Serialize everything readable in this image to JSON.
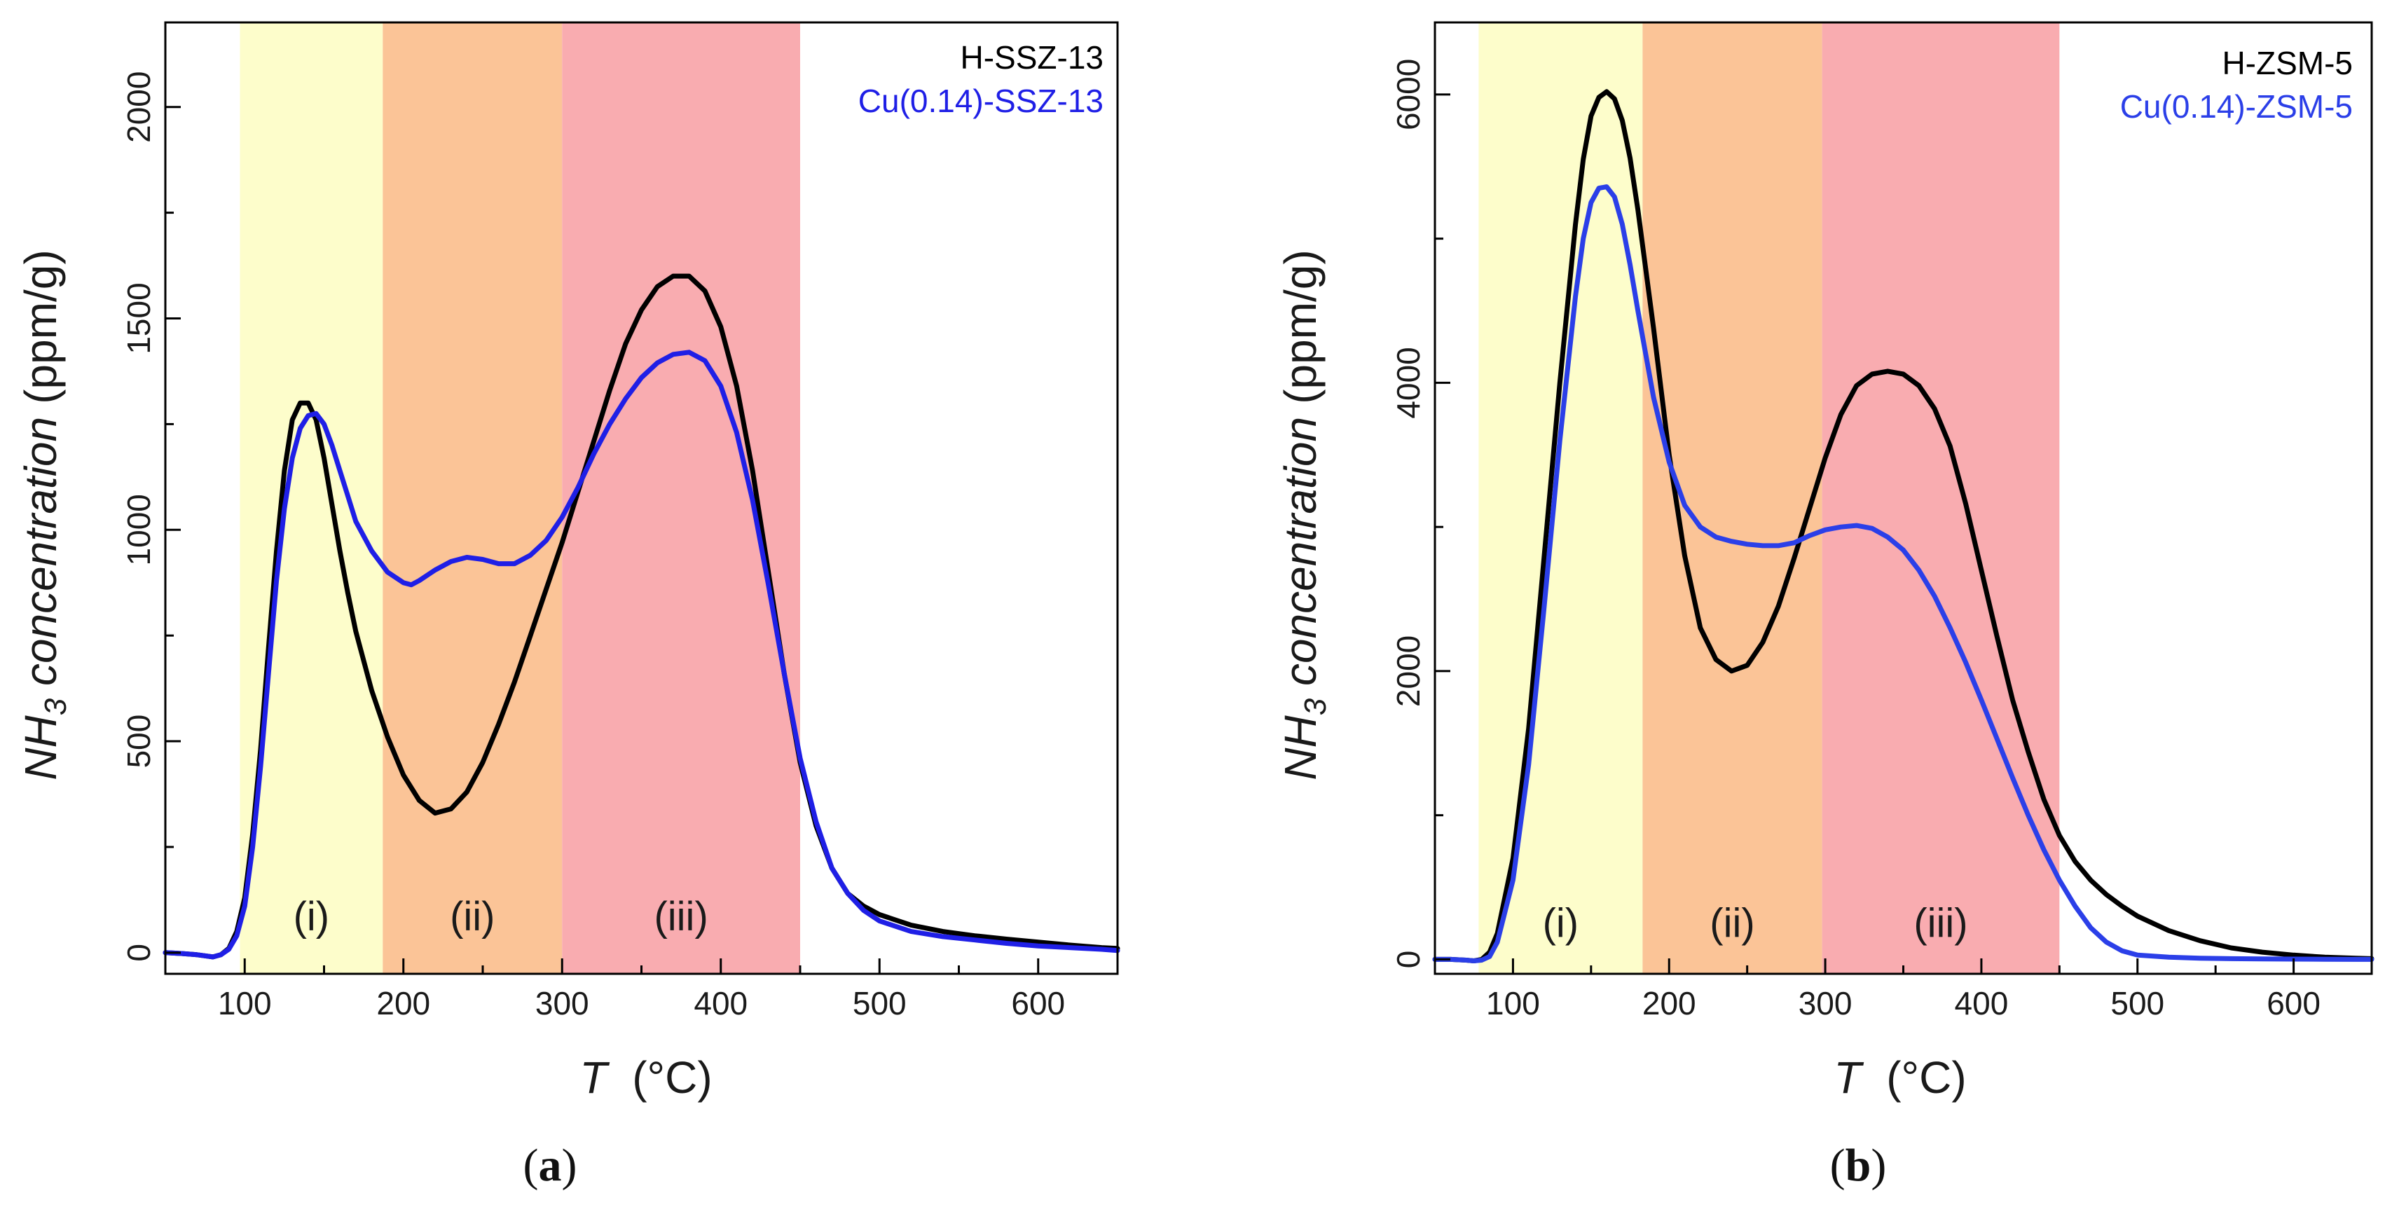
{
  "chart_data": [
    {
      "type": "line",
      "panel_label": "a",
      "xlabel": "T",
      "xlabel_unit": "(°C)",
      "ylabel_prefix": "NH",
      "ylabel_sub": "3",
      "ylabel_suffix": " concentration",
      "ylabel_unit": "(ppm/g)",
      "xlim": [
        50,
        650
      ],
      "ylim": [
        -50,
        2200
      ],
      "xticks": [
        100,
        200,
        300,
        400,
        500,
        600
      ],
      "yticks": [
        0,
        500,
        1000,
        1500,
        2000
      ],
      "regions": [
        {
          "label": "(i)",
          "x0": 97,
          "x1": 187,
          "color": "#fdfdcb"
        },
        {
          "label": "(ii)",
          "x0": 187,
          "x1": 300,
          "color": "#fbc497"
        },
        {
          "label": "(iii)",
          "x0": 300,
          "x1": 450,
          "color": "#f9acb0"
        }
      ],
      "legend": {
        "position": "top-right"
      },
      "series": [
        {
          "name": "H-SSZ-13",
          "color": "#000000",
          "x": [
            50,
            60,
            70,
            80,
            85,
            90,
            95,
            100,
            105,
            110,
            115,
            120,
            125,
            130,
            135,
            140,
            145,
            150,
            155,
            160,
            165,
            170,
            180,
            190,
            200,
            210,
            220,
            230,
            240,
            250,
            260,
            270,
            280,
            290,
            300,
            310,
            320,
            330,
            340,
            350,
            360,
            370,
            380,
            390,
            400,
            410,
            420,
            430,
            440,
            450,
            460,
            470,
            480,
            490,
            500,
            520,
            540,
            560,
            580,
            600,
            620,
            640,
            650
          ],
          "y": [
            0,
            -2,
            -5,
            -10,
            -5,
            10,
            50,
            130,
            280,
            480,
            720,
            950,
            1140,
            1260,
            1300,
            1300,
            1260,
            1170,
            1060,
            950,
            850,
            760,
            620,
            510,
            420,
            360,
            330,
            340,
            380,
            450,
            540,
            640,
            750,
            860,
            970,
            1090,
            1210,
            1330,
            1440,
            1520,
            1575,
            1600,
            1600,
            1565,
            1480,
            1340,
            1140,
            900,
            660,
            450,
            300,
            200,
            140,
            110,
            90,
            65,
            50,
            40,
            32,
            25,
            18,
            12,
            10
          ]
        },
        {
          "name": "Cu(0.14)-SSZ-13",
          "color": "#1f1fe6",
          "x": [
            50,
            60,
            70,
            80,
            85,
            90,
            95,
            100,
            105,
            110,
            115,
            120,
            125,
            130,
            135,
            140,
            145,
            150,
            155,
            160,
            165,
            170,
            180,
            190,
            200,
            205,
            210,
            220,
            230,
            240,
            250,
            260,
            270,
            280,
            290,
            300,
            310,
            320,
            330,
            340,
            350,
            360,
            370,
            380,
            390,
            400,
            410,
            420,
            430,
            440,
            450,
            460,
            470,
            480,
            490,
            500,
            520,
            540,
            560,
            580,
            600,
            620,
            640,
            650
          ],
          "y": [
            0,
            -2,
            -5,
            -10,
            -5,
            8,
            40,
            110,
            250,
            440,
            660,
            880,
            1050,
            1170,
            1240,
            1270,
            1275,
            1250,
            1200,
            1140,
            1080,
            1020,
            950,
            900,
            875,
            870,
            880,
            905,
            925,
            935,
            930,
            920,
            920,
            940,
            975,
            1030,
            1100,
            1180,
            1250,
            1310,
            1360,
            1395,
            1415,
            1420,
            1400,
            1340,
            1230,
            1070,
            870,
            660,
            460,
            310,
            200,
            140,
            100,
            75,
            50,
            38,
            30,
            22,
            16,
            12,
            8,
            5
          ]
        }
      ]
    },
    {
      "type": "line",
      "panel_label": "b",
      "xlabel": "T",
      "xlabel_unit": "(°C)",
      "ylabel_prefix": "NH",
      "ylabel_sub": "3",
      "ylabel_suffix": " concentration",
      "ylabel_unit": "(ppm/g)",
      "xlim": [
        50,
        650
      ],
      "ylim": [
        -100,
        6500
      ],
      "xticks": [
        100,
        200,
        300,
        400,
        500,
        600
      ],
      "yticks": [
        0,
        2000,
        4000,
        6000
      ],
      "regions": [
        {
          "label": "(i)",
          "x0": 78,
          "x1": 183,
          "color": "#fdfdcb"
        },
        {
          "label": "(ii)",
          "x0": 183,
          "x1": 298,
          "color": "#fbc497"
        },
        {
          "label": "(iii)",
          "x0": 298,
          "x1": 450,
          "color": "#f9acb0"
        }
      ],
      "legend": {
        "position": "top-right"
      },
      "series": [
        {
          "name": "H-ZSM-5",
          "color": "#000000",
          "x": [
            50,
            60,
            70,
            75,
            80,
            85,
            90,
            100,
            110,
            120,
            130,
            140,
            145,
            150,
            155,
            160,
            165,
            170,
            175,
            180,
            190,
            200,
            210,
            220,
            230,
            240,
            250,
            260,
            270,
            280,
            290,
            300,
            310,
            320,
            330,
            340,
            350,
            360,
            370,
            380,
            390,
            400,
            410,
            420,
            430,
            440,
            450,
            460,
            470,
            480,
            490,
            500,
            520,
            540,
            560,
            580,
            600,
            620,
            640,
            650
          ],
          "y": [
            0,
            0,
            -5,
            -10,
            0,
            50,
            180,
            700,
            1600,
            2800,
            4000,
            5100,
            5550,
            5850,
            5980,
            6020,
            5970,
            5820,
            5560,
            5200,
            4380,
            3500,
            2800,
            2300,
            2080,
            2000,
            2040,
            2200,
            2450,
            2780,
            3130,
            3480,
            3780,
            3980,
            4060,
            4080,
            4060,
            3980,
            3820,
            3560,
            3160,
            2700,
            2240,
            1800,
            1440,
            1110,
            860,
            680,
            550,
            450,
            370,
            300,
            200,
            130,
            80,
            50,
            30,
            15,
            8,
            5
          ]
        },
        {
          "name": "Cu(0.14)-ZSM-5",
          "color": "#2b3fe8",
          "x": [
            50,
            60,
            70,
            75,
            80,
            85,
            90,
            100,
            110,
            120,
            130,
            140,
            145,
            150,
            155,
            160,
            165,
            170,
            175,
            180,
            185,
            190,
            200,
            210,
            220,
            230,
            240,
            250,
            260,
            270,
            280,
            290,
            300,
            310,
            320,
            330,
            340,
            350,
            360,
            370,
            380,
            390,
            400,
            410,
            420,
            430,
            440,
            450,
            460,
            470,
            480,
            490,
            500,
            520,
            540,
            560,
            580,
            600,
            620,
            640,
            650
          ],
          "y": [
            0,
            0,
            -5,
            -10,
            -5,
            20,
            120,
            550,
            1350,
            2450,
            3600,
            4600,
            5000,
            5250,
            5350,
            5360,
            5290,
            5100,
            4820,
            4500,
            4200,
            3900,
            3450,
            3150,
            3000,
            2930,
            2900,
            2880,
            2870,
            2870,
            2890,
            2940,
            2980,
            3000,
            3010,
            2990,
            2930,
            2840,
            2700,
            2520,
            2300,
            2060,
            1800,
            1530,
            1260,
            1000,
            760,
            550,
            370,
            220,
            120,
            60,
            30,
            15,
            8,
            5,
            3,
            2,
            1,
            0,
            0
          ]
        }
      ]
    }
  ]
}
